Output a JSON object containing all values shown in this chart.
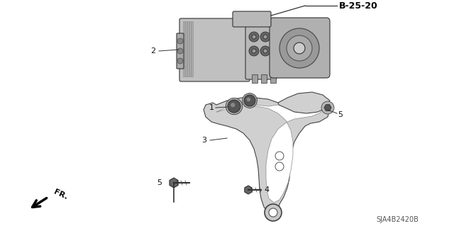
{
  "bg_color": "#ffffff",
  "fig_width": 6.4,
  "fig_height": 3.19,
  "dpi": 100,
  "part_label": "B-25-20",
  "part_number": "SJA4B2420B",
  "line_color": "#333333",
  "fill_light": "#c8c8c8",
  "fill_mid": "#aaaaaa",
  "fill_dark": "#888888"
}
